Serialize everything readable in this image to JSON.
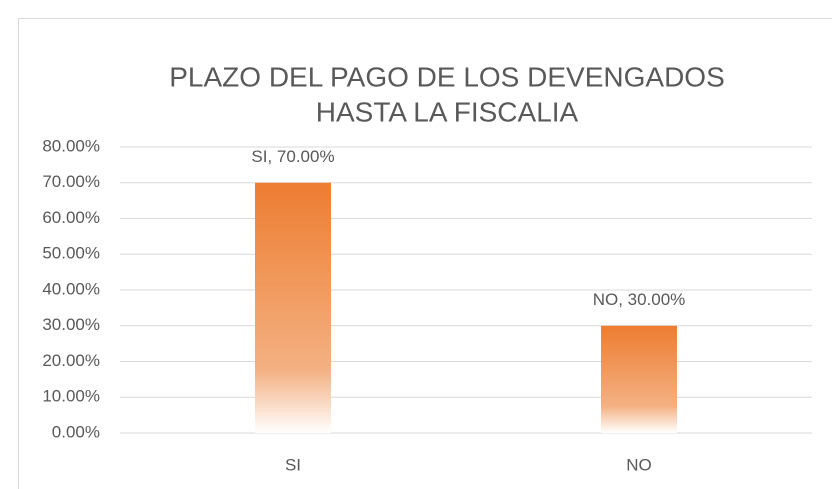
{
  "chart_data": {
    "type": "bar",
    "title": [
      "PLAZO DEL PAGO DE LOS DEVENGADOS",
      "HASTA LA FISCALIA"
    ],
    "categories": [
      "SI",
      "NO"
    ],
    "values": [
      70,
      30
    ],
    "value_labels": [
      "SI, 70.00%",
      "NO, 30.00%"
    ],
    "color": "#ed7d31",
    "ylim": [
      0,
      80
    ],
    "yticks": [
      {
        "value": 0,
        "label": "0.00%"
      },
      {
        "value": 10,
        "label": "10.00%"
      },
      {
        "value": 20,
        "label": "20.00%"
      },
      {
        "value": 30,
        "label": "30.00%"
      },
      {
        "value": 40,
        "label": "40.00%"
      },
      {
        "value": 50,
        "label": "50.00%"
      },
      {
        "value": 60,
        "label": "60.00%"
      },
      {
        "value": 70,
        "label": "70.00%"
      },
      {
        "value": 80,
        "label": "80.00%"
      }
    ],
    "grid": true
  }
}
